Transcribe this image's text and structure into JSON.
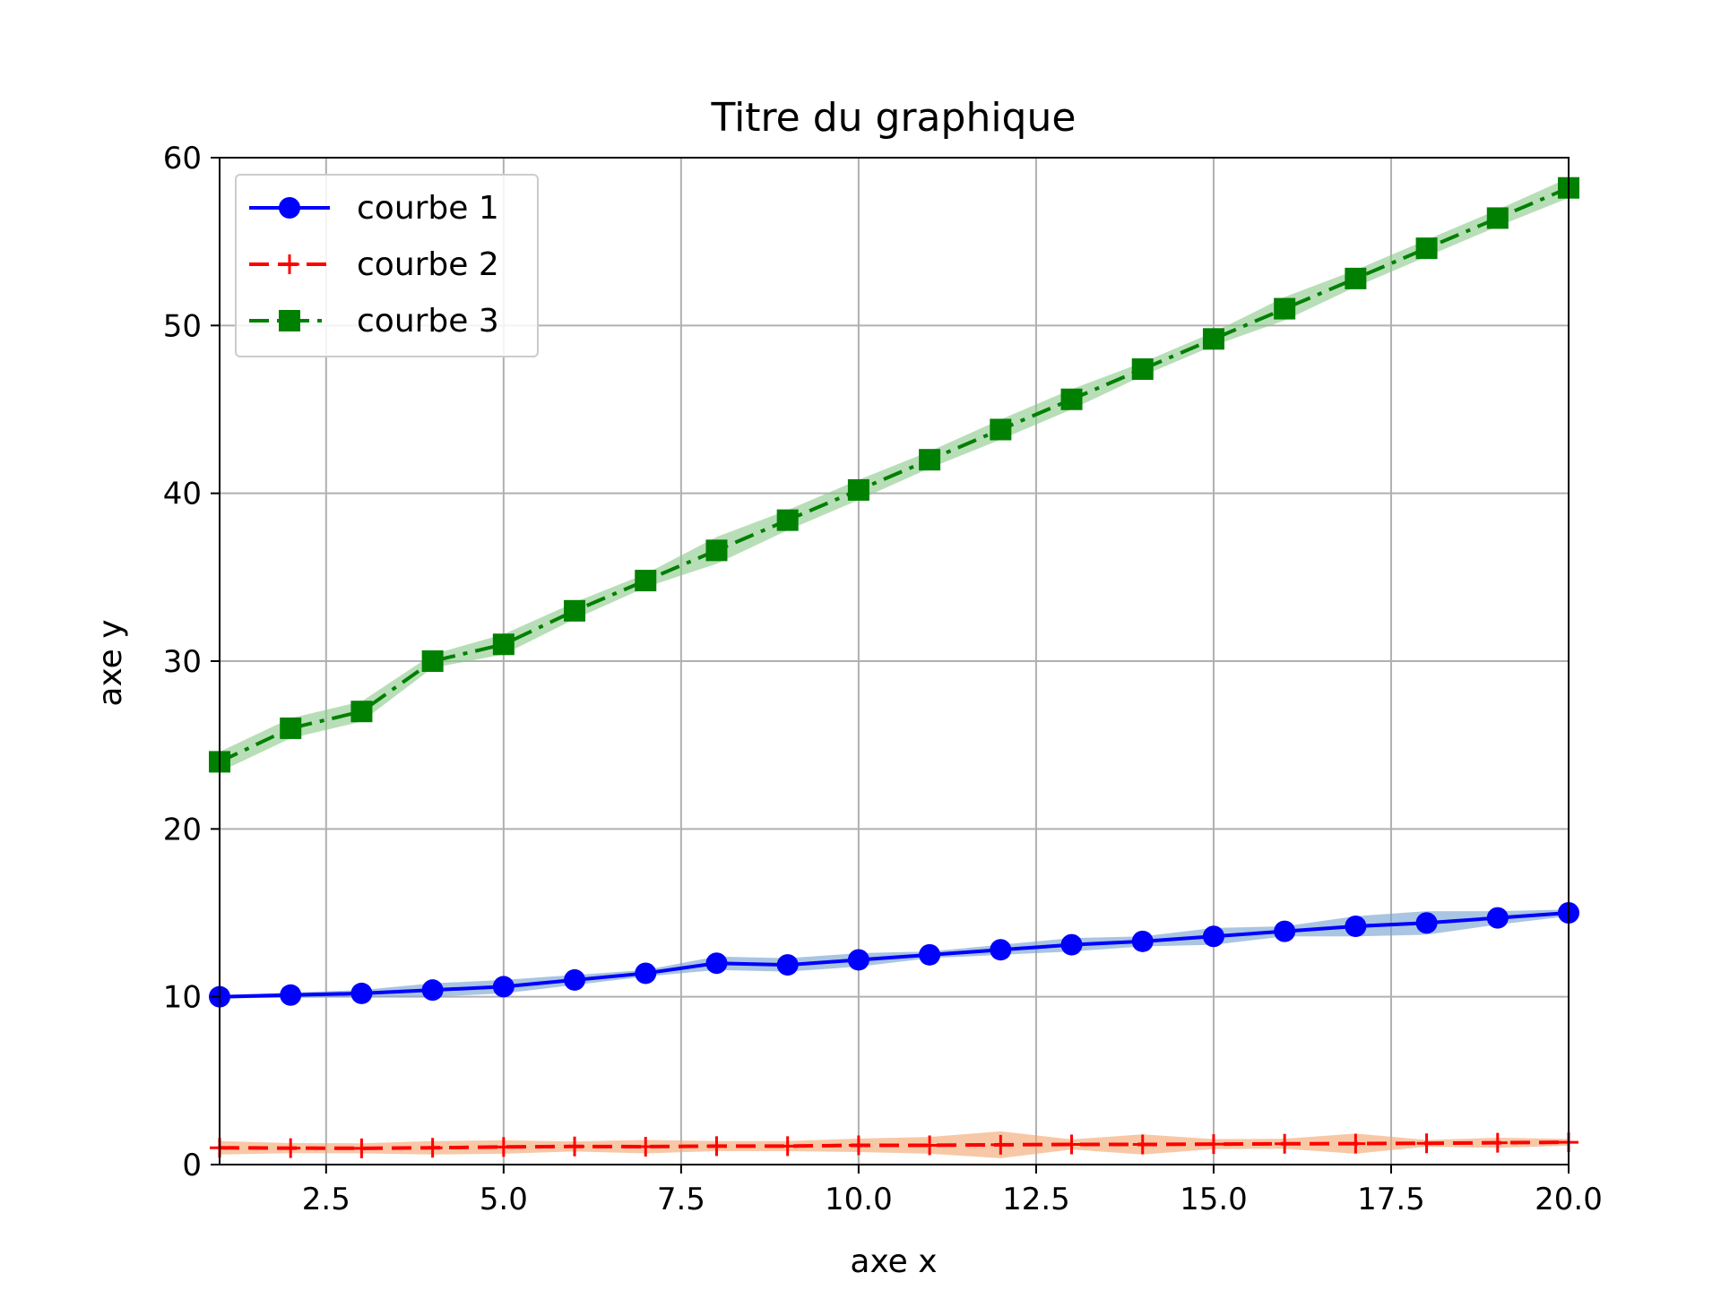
{
  "chart_data": {
    "type": "line",
    "title": "Titre du graphique",
    "xlabel": "axe x",
    "ylabel": "axe y",
    "xlim": [
      1,
      20
    ],
    "ylim": [
      0,
      60
    ],
    "xticks": [
      "2.5",
      "5.0",
      "7.5",
      "10.0",
      "12.5",
      "15.0",
      "17.5",
      "20.0"
    ],
    "yticks": [
      "0",
      "10",
      "20",
      "30",
      "40",
      "50",
      "60"
    ],
    "grid": true,
    "legend_position": "top-left",
    "x": [
      1,
      2,
      3,
      4,
      5,
      6,
      7,
      8,
      9,
      10,
      11,
      12,
      13,
      14,
      15,
      16,
      17,
      18,
      19,
      20
    ],
    "series": [
      {
        "name": "courbe 1",
        "color": "#0000ff",
        "band_color": "#6f9fcf",
        "marker": "circle",
        "line_style": "solid",
        "values": [
          10.0,
          10.1,
          10.2,
          10.4,
          10.6,
          11.0,
          11.4,
          12.0,
          11.9,
          12.2,
          12.5,
          12.8,
          13.1,
          13.3,
          13.6,
          13.9,
          14.2,
          14.4,
          14.7,
          15.0
        ],
        "band": [
          0.1,
          0.15,
          0.2,
          0.4,
          0.4,
          0.3,
          0.2,
          0.4,
          0.4,
          0.4,
          0.2,
          0.3,
          0.4,
          0.3,
          0.5,
          0.3,
          0.6,
          0.7,
          0.4,
          0.2
        ]
      },
      {
        "name": "courbe 2",
        "color": "#ff0000",
        "band_color": "#f4a46a",
        "marker": "plus",
        "line_style": "dashed",
        "values": [
          1.0,
          0.98,
          0.97,
          1.0,
          1.05,
          1.08,
          1.07,
          1.1,
          1.1,
          1.15,
          1.15,
          1.18,
          1.2,
          1.2,
          1.22,
          1.24,
          1.25,
          1.27,
          1.3,
          1.33
        ],
        "band": [
          0.4,
          0.3,
          0.3,
          0.4,
          0.4,
          0.3,
          0.4,
          0.3,
          0.3,
          0.4,
          0.5,
          0.8,
          0.3,
          0.6,
          0.3,
          0.3,
          0.6,
          0.2,
          0.3,
          0.2
        ]
      },
      {
        "name": "courbe 3",
        "color": "#008000",
        "band_color": "#88c888",
        "marker": "square",
        "line_style": "dashdot",
        "values": [
          24.0,
          26.0,
          27.0,
          30.0,
          31.0,
          33.0,
          34.8,
          36.6,
          38.4,
          40.2,
          42.0,
          43.8,
          45.6,
          47.4,
          49.2,
          51.0,
          52.8,
          54.6,
          56.4,
          58.2
        ],
        "band": [
          0.6,
          0.6,
          0.6,
          0.4,
          0.6,
          0.5,
          0.4,
          0.8,
          0.6,
          0.6,
          0.5,
          0.6,
          0.6,
          0.4,
          0.4,
          0.7,
          0.5,
          0.5,
          0.5,
          0.6
        ]
      }
    ]
  }
}
